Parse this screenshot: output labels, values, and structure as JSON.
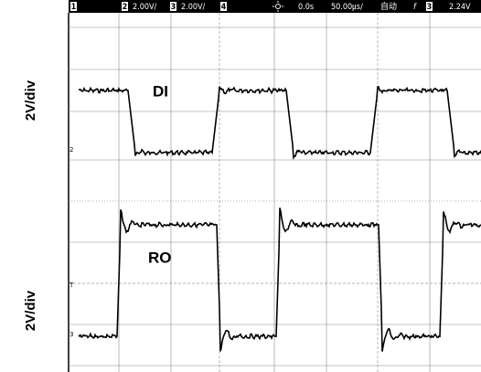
{
  "side_labels": [
    "2V/div",
    "2V/div"
  ],
  "status_bar": {
    "ch1": "1",
    "ch2": "2",
    "ch2_scale": "2.00V/",
    "ch3": "3",
    "ch3_scale": "2.00V/",
    "ch4": "4",
    "delay": "0.0s",
    "timebase": "50.00㎲/",
    "mode": "自动",
    "edge": "f",
    "trigger_source": "3",
    "trigger_level": "2.24V"
  },
  "traces": [
    {
      "label": "DI",
      "marker": "2"
    },
    {
      "label": "RO",
      "marker": "3"
    }
  ],
  "trigger_marker": "T"
}
